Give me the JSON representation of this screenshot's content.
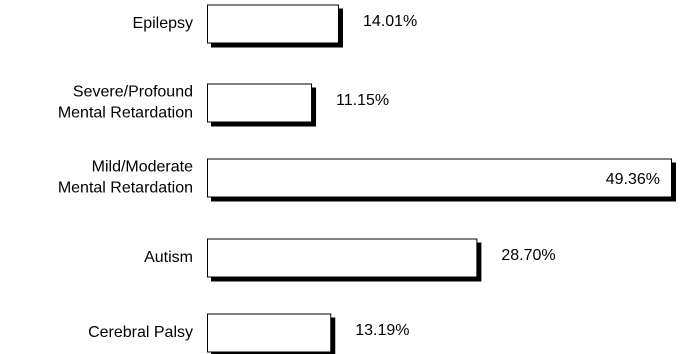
{
  "chart_data": {
    "type": "bar",
    "orientation": "horizontal",
    "categories": [
      [
        "Epilepsy"
      ],
      [
        "Severe/Profound",
        "Mental Retardation"
      ],
      [
        "Mild/Moderate",
        "Mental Retardation"
      ],
      [
        "Autism"
      ],
      [
        "Cerebral Palsy"
      ]
    ],
    "values": [
      14.01,
      11.15,
      49.36,
      28.7,
      13.19
    ],
    "value_labels": [
      "14.01%",
      "11.15%",
      "49.36%",
      "28.70%",
      "13.19%"
    ],
    "xlim": [
      0,
      49.36
    ],
    "title": "",
    "xlabel": "",
    "ylabel": "",
    "grid": false,
    "legend": "none",
    "colors": {
      "bar_fill": "#ffffff",
      "bar_stroke": "#000000",
      "bar_shadow": "#000000",
      "text": "#000000"
    }
  }
}
